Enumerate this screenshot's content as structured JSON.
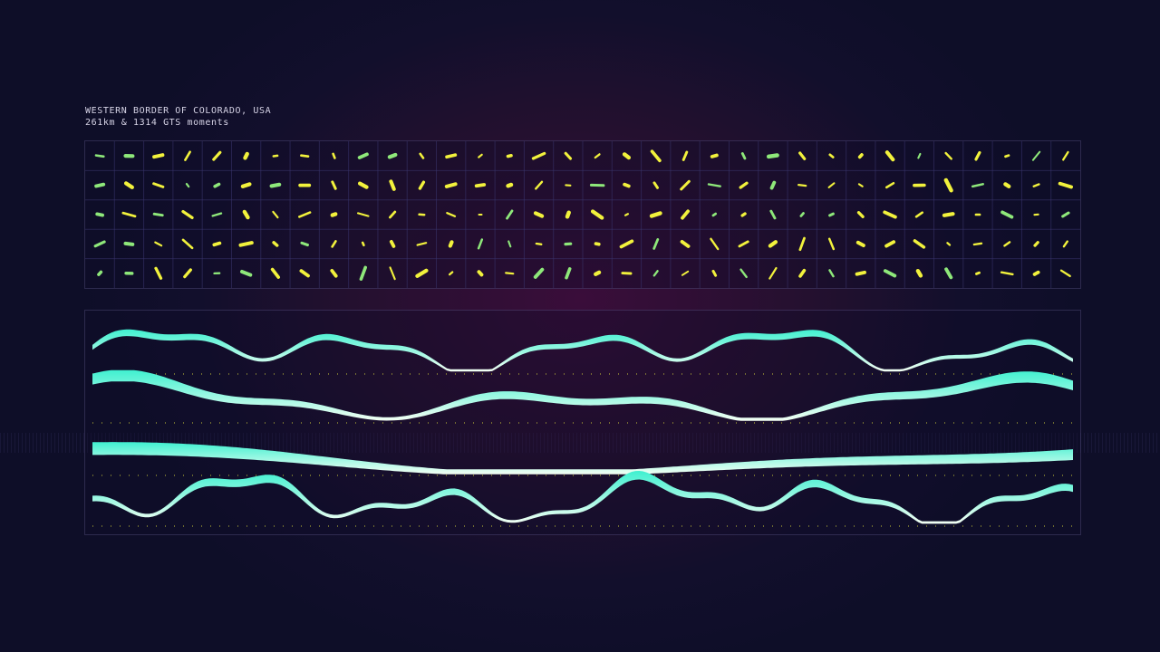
{
  "header": {
    "title": "WESTERN BORDER OF COLORADO, USA",
    "subtitle": "261km & 1314 GTS moments"
  },
  "colors": {
    "background": "#120f2c",
    "glyph_yellow": "#f2f23c",
    "glyph_green": "#8ee87a",
    "wave_top": "#3ff0d0",
    "wave_bottom": "#f4fff4",
    "grid_line": "#3a3670"
  },
  "glyph_grid": {
    "columns": 34,
    "rows": 5
  },
  "wave_rows": 4
}
